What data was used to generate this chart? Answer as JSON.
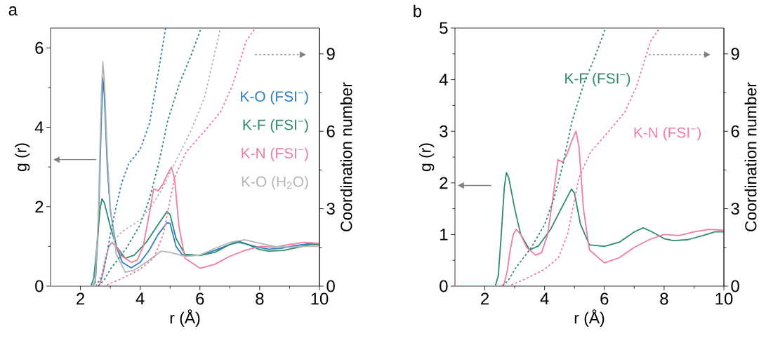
{
  "chart_data": [
    {
      "type": "line",
      "title": "a",
      "xlabel": "r (Å)",
      "ylabel": "g (r)",
      "y2label": "Coordination number",
      "xlim": [
        1,
        10
      ],
      "xticks": [
        2,
        4,
        6,
        8,
        10
      ],
      "ylim": [
        0,
        6.5
      ],
      "yticks": [
        0,
        2,
        4,
        6
      ],
      "y2lim": [
        0,
        10
      ],
      "y2ticks": [
        0,
        3,
        6,
        9
      ],
      "series": [
        {
          "name": "K-O (FSI$^{−}$)",
          "color": "#2a7fc6",
          "line_style": "solid",
          "x": [
            1,
            2.4,
            2.5,
            2.6,
            2.7,
            2.75,
            2.8,
            2.9,
            3.0,
            3.2,
            3.4,
            3.7,
            4.0,
            4.3,
            4.6,
            4.9,
            5.0,
            5.2,
            5.4,
            5.6,
            6.0,
            6.5,
            7.0,
            7.3,
            7.6,
            8.0,
            8.3,
            8.7,
            9.2,
            9.6,
            10
          ],
          "values": [
            0,
            0,
            0.1,
            1.5,
            4.2,
            5.25,
            4.8,
            3.0,
            1.9,
            1.0,
            0.6,
            0.46,
            0.6,
            0.9,
            1.3,
            1.6,
            1.58,
            1.0,
            0.8,
            0.77,
            0.78,
            0.9,
            1.05,
            1.1,
            1.05,
            0.97,
            0.93,
            0.95,
            1.02,
            1.06,
            1.05
          ]
        },
        {
          "name": "K-F (FSI$^{−}$)",
          "color": "#2e8b6b",
          "line_style": "solid",
          "x": [
            1,
            2.35,
            2.45,
            2.55,
            2.65,
            2.72,
            2.8,
            3.0,
            3.2,
            3.5,
            3.8,
            4.2,
            4.6,
            4.9,
            5.0,
            5.2,
            5.5,
            6.0,
            6.5,
            7.0,
            7.3,
            7.6,
            8.0,
            8.3,
            8.8,
            9.3,
            9.7,
            10
          ],
          "values": [
            0,
            0,
            0.2,
            1.0,
            1.9,
            2.2,
            2.1,
            1.5,
            1.0,
            0.7,
            0.78,
            1.1,
            1.55,
            1.88,
            1.8,
            1.2,
            0.8,
            0.77,
            0.85,
            1.05,
            1.13,
            1.05,
            0.92,
            0.88,
            0.9,
            0.98,
            1.05,
            1.05
          ]
        },
        {
          "name": "K-N (FSI$^{−}$)",
          "color": "#f07ca0",
          "line_style": "solid",
          "x": [
            1,
            2.55,
            2.65,
            2.75,
            2.85,
            2.95,
            3.05,
            3.2,
            3.4,
            3.7,
            3.9,
            4.1,
            4.3,
            4.45,
            4.6,
            4.75,
            4.9,
            5.05,
            5.15,
            5.3,
            5.5,
            6.0,
            6.5,
            7.0,
            7.5,
            8.0,
            8.5,
            9.0,
            9.5,
            10
          ],
          "values": [
            0,
            0,
            0.05,
            0.3,
            0.7,
            1.0,
            1.1,
            1.0,
            0.75,
            0.6,
            0.65,
            1.0,
            1.8,
            2.45,
            2.4,
            2.55,
            2.8,
            3.0,
            2.7,
            1.5,
            0.7,
            0.45,
            0.55,
            0.75,
            0.9,
            1.0,
            0.98,
            1.05,
            1.1,
            1.08
          ]
        },
        {
          "name": "K-O (H$_{2}$O)",
          "color": "#b5b5b5",
          "line_style": "solid",
          "x": [
            1,
            2.4,
            2.5,
            2.6,
            2.7,
            2.75,
            2.8,
            2.9,
            3.0,
            3.2,
            3.5,
            3.8,
            4.2,
            4.7,
            5.0,
            5.5,
            6.0,
            6.5,
            7.0,
            7.5,
            8.0,
            8.5,
            9.0,
            9.5,
            10
          ],
          "values": [
            0,
            0,
            0.15,
            1.8,
            4.8,
            5.65,
            5.2,
            3.3,
            2.0,
            0.8,
            0.35,
            0.4,
            0.6,
            0.88,
            0.85,
            0.75,
            0.78,
            0.95,
            1.1,
            1.17,
            1.08,
            1.0,
            0.98,
            1.0,
            1.0
          ]
        },
        {
          "color": "#2a7fc6",
          "line_style": "dashed",
          "axis": "y2",
          "x": [
            2.5,
            2.7,
            2.85,
            3.0,
            3.2,
            3.38,
            3.62,
            4.0,
            4.31,
            4.58,
            4.85
          ],
          "values": [
            0,
            0.3,
            1.0,
            2.0,
            3.1,
            4.0,
            4.75,
            5.3,
            6.3,
            8.1,
            10
          ]
        },
        {
          "color": "#2e8b6b",
          "line_style": "dashed",
          "axis": "y2",
          "x": [
            2.6,
            2.8,
            3.0,
            3.54,
            4.0,
            4.31,
            4.62,
            4.92,
            5.31,
            5.69,
            6.04
          ],
          "values": [
            0,
            0.25,
            0.65,
            1.47,
            2.38,
            3.38,
            4.75,
            6.4,
            7.84,
            8.9,
            10
          ]
        },
        {
          "color": "#f07ca0",
          "line_style": "dashed",
          "axis": "y2",
          "x": [
            2.75,
            3.0,
            3.38,
            4.0,
            4.46,
            4.77,
            5.15,
            5.54,
            6.15,
            6.69,
            7.08,
            7.54,
            7.85
          ],
          "values": [
            0,
            0.1,
            0.29,
            0.65,
            1.1,
            2.0,
            4.2,
            5.2,
            6.0,
            6.75,
            7.75,
            9.47,
            10
          ]
        },
        {
          "color": "#b5b5b5",
          "line_style": "dashed",
          "axis": "y2",
          "x": [
            2.5,
            2.7,
            2.85,
            3.0,
            3.38,
            4.0,
            4.38,
            4.77,
            5.23,
            5.69,
            6.15,
            6.46,
            6.69
          ],
          "values": [
            0,
            0.4,
            1.2,
            1.6,
            2.1,
            2.56,
            3.1,
            3.84,
            4.93,
            6.0,
            7.3,
            8.84,
            10
          ]
        }
      ]
    },
    {
      "type": "line",
      "title": "b",
      "xlabel": "r (Å)",
      "ylabel": "g (r)",
      "y2label": "Coordination number",
      "xlim": [
        1,
        10
      ],
      "xticks": [
        2,
        4,
        6,
        8,
        10
      ],
      "ylim": [
        0,
        5
      ],
      "yticks": [
        0,
        1,
        2,
        3,
        4,
        5
      ],
      "y2lim": [
        0,
        10
      ],
      "y2ticks": [
        0,
        3,
        6,
        9
      ],
      "series": [
        {
          "name": "K-F (FSI$^{−}$)",
          "color": "#2e8b6b",
          "line_style": "solid",
          "x": [
            1,
            2.35,
            2.45,
            2.55,
            2.65,
            2.72,
            2.8,
            3.0,
            3.2,
            3.5,
            3.8,
            4.2,
            4.6,
            4.9,
            5.0,
            5.2,
            5.5,
            6.0,
            6.5,
            7.0,
            7.3,
            7.6,
            8.0,
            8.3,
            8.8,
            9.3,
            9.7,
            10
          ],
          "values": [
            0,
            0,
            0.2,
            1.0,
            1.9,
            2.2,
            2.1,
            1.5,
            1.0,
            0.7,
            0.78,
            1.1,
            1.55,
            1.88,
            1.8,
            1.2,
            0.8,
            0.77,
            0.85,
            1.05,
            1.13,
            1.05,
            0.92,
            0.88,
            0.9,
            0.98,
            1.05,
            1.05
          ]
        },
        {
          "name": "K-N (FSI$^{−}$)",
          "color": "#f07ca0",
          "line_style": "solid",
          "x": [
            1,
            2.55,
            2.65,
            2.75,
            2.85,
            2.95,
            3.05,
            3.2,
            3.4,
            3.7,
            3.9,
            4.1,
            4.3,
            4.45,
            4.6,
            4.75,
            4.9,
            5.05,
            5.15,
            5.3,
            5.5,
            6.0,
            6.5,
            7.0,
            7.5,
            8.0,
            8.5,
            9.0,
            9.5,
            10
          ],
          "values": [
            0,
            0,
            0.05,
            0.3,
            0.7,
            1.0,
            1.1,
            1.0,
            0.75,
            0.6,
            0.65,
            1.0,
            1.8,
            2.45,
            2.4,
            2.55,
            2.8,
            3.0,
            2.7,
            1.5,
            0.7,
            0.45,
            0.55,
            0.75,
            0.9,
            1.0,
            0.98,
            1.05,
            1.1,
            1.08
          ]
        },
        {
          "color": "#2e8b6b",
          "line_style": "dashed",
          "axis": "y2",
          "x": [
            2.6,
            2.8,
            3.0,
            3.54,
            4.0,
            4.31,
            4.62,
            4.92,
            5.31,
            5.69,
            6.04
          ],
          "values": [
            0,
            0.25,
            0.65,
            1.47,
            2.38,
            3.38,
            4.75,
            6.4,
            7.84,
            8.9,
            10
          ]
        },
        {
          "color": "#f07ca0",
          "line_style": "dashed",
          "axis": "y2",
          "x": [
            2.75,
            3.0,
            3.38,
            4.0,
            4.46,
            4.77,
            5.15,
            5.54,
            6.15,
            6.69,
            7.08,
            7.54,
            7.85
          ],
          "values": [
            0,
            0.1,
            0.29,
            0.65,
            1.1,
            2.0,
            4.2,
            5.2,
            6.0,
            6.75,
            7.75,
            9.47,
            10
          ]
        }
      ]
    }
  ]
}
